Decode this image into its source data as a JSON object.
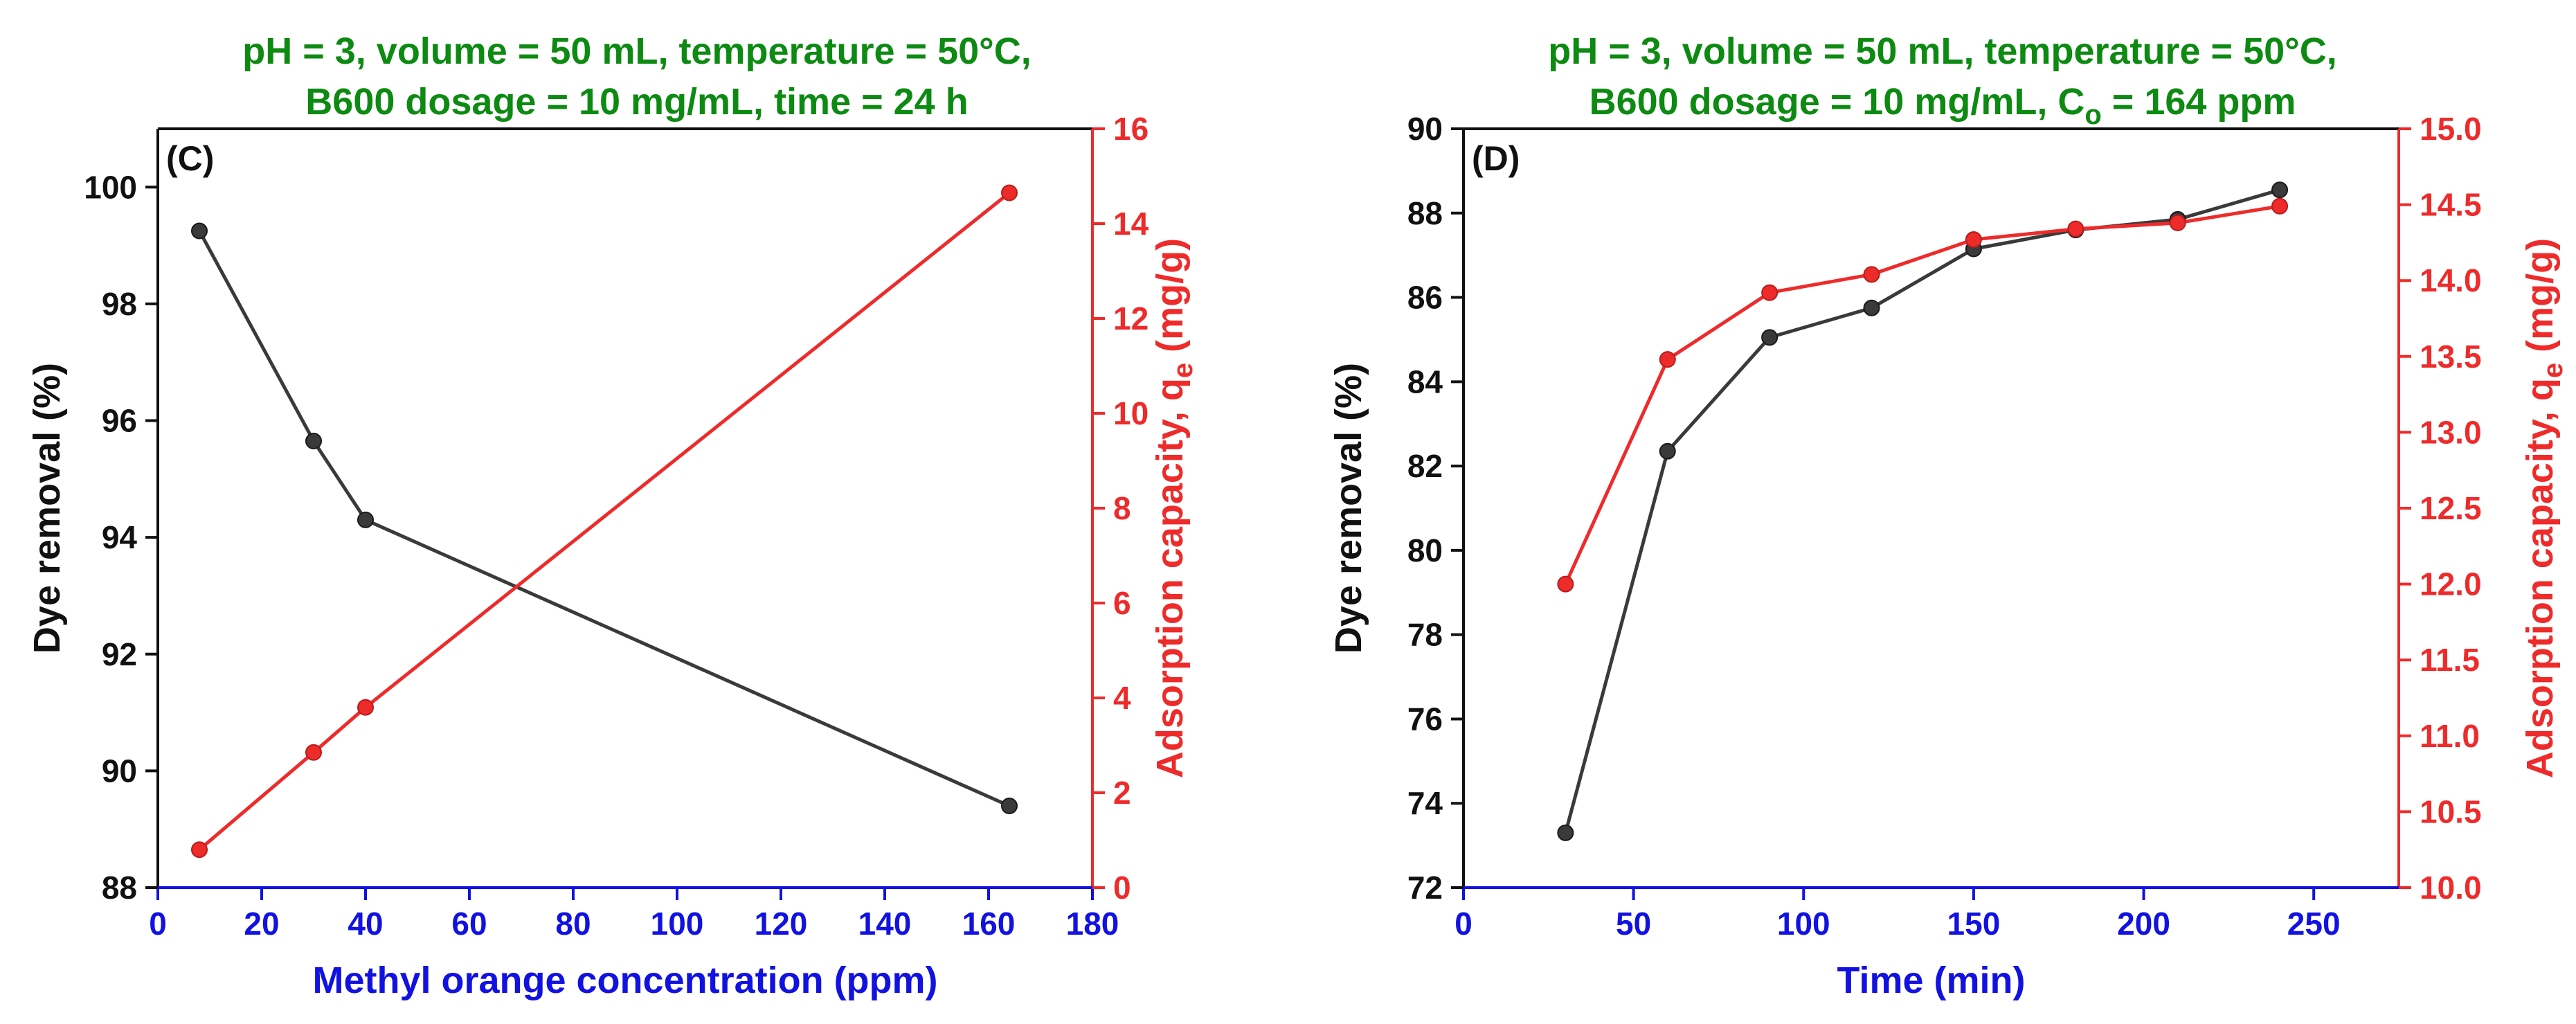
{
  "colors": {
    "title": "#0d8a12",
    "left_axis": "#111111",
    "bottom_axis": "#1212e0",
    "right_axis": "#ee2b2b",
    "left_series": "#3a3a3a",
    "right_series": "#ee2b2b"
  },
  "chart_data": [
    {
      "type": "line",
      "panel_label": "(C)",
      "title_lines": [
        "pH = 3, volume = 50 mL, temperature = 50°C,",
        "B600 dosage = 10 mg/mL, time = 24 h"
      ],
      "xlabel": "Methyl orange concentration (ppm)",
      "ylabel": "Dye removal (%)",
      "y2label": {
        "main": "Adsorption capacity, q",
        "sub": "e",
        "unit": " (mg/g)"
      },
      "xlim": [
        0,
        180
      ],
      "xticks": [
        0,
        20,
        40,
        60,
        80,
        100,
        120,
        140,
        160,
        180
      ],
      "ylim": [
        88,
        101
      ],
      "yticks": [
        88,
        90,
        92,
        94,
        96,
        98,
        100
      ],
      "y2lim": [
        0,
        16
      ],
      "y2ticks": [
        0,
        2,
        4,
        6,
        8,
        10,
        12,
        14,
        16
      ],
      "series": [
        {
          "name": "Dye removal",
          "axis": "left",
          "x": [
            8,
            30,
            40,
            164
          ],
          "y": [
            99.25,
            95.65,
            94.3,
            89.4
          ]
        },
        {
          "name": "Adsorption capacity",
          "axis": "right",
          "x": [
            8,
            30,
            40,
            164
          ],
          "y": [
            0.8,
            2.85,
            3.8,
            14.65
          ]
        }
      ]
    },
    {
      "type": "line",
      "panel_label": "(D)",
      "title_lines": [
        "pH = 3, volume = 50 mL, temperature = 50°C,",
        "B600 dosage = 10 mg/mL, C"
      ],
      "title_sub": "o",
      "title_tail": " = 164 ppm",
      "xlabel": "Time (min)",
      "ylabel": "Dye removal (%)",
      "y2label": {
        "main": "Adsorption capacity, q",
        "sub": "e",
        "unit": " (mg/g)"
      },
      "xlim": [
        0,
        275
      ],
      "xticks": [
        0,
        50,
        100,
        150,
        200,
        250
      ],
      "ylim": [
        72,
        90
      ],
      "yticks": [
        72,
        74,
        76,
        78,
        80,
        82,
        84,
        86,
        88,
        90
      ],
      "y2lim": [
        10,
        15
      ],
      "y2ticks": [
        "10.0",
        "10.5",
        "11.0",
        "11.5",
        "12.0",
        "12.5",
        "13.0",
        "13.5",
        "14.0",
        "14.5",
        "15.0"
      ],
      "series": [
        {
          "name": "Dye removal",
          "axis": "left",
          "x": [
            30,
            60,
            90,
            120,
            150,
            180,
            210,
            240
          ],
          "y": [
            73.3,
            82.35,
            85.05,
            85.75,
            87.15,
            87.6,
            87.85,
            88.55
          ]
        },
        {
          "name": "Adsorption capacity",
          "axis": "right",
          "x": [
            30,
            60,
            90,
            120,
            150,
            180,
            210,
            240
          ],
          "y": [
            12.0,
            13.48,
            13.92,
            14.04,
            14.27,
            14.34,
            14.38,
            14.49
          ]
        }
      ]
    }
  ]
}
